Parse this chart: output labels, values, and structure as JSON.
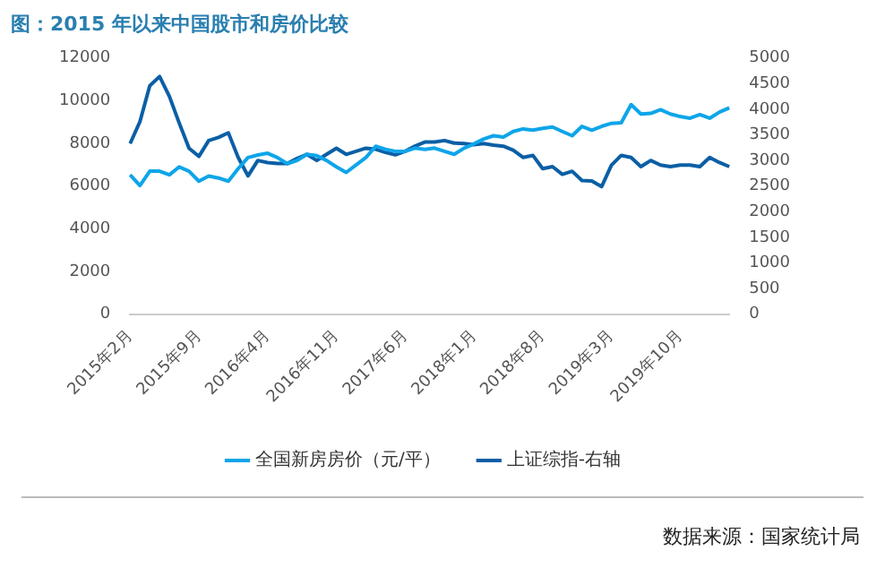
{
  "chart_data": {
    "type": "line",
    "title": "图：2015 年以来中国股市和房价比较",
    "categories": [
      "2015年2月",
      null,
      null,
      null,
      null,
      null,
      null,
      "2015年9月",
      null,
      null,
      null,
      null,
      null,
      null,
      "2016年4月",
      null,
      null,
      null,
      null,
      null,
      null,
      "2016年11月",
      null,
      null,
      null,
      null,
      null,
      null,
      "2017年6月",
      null,
      null,
      null,
      null,
      null,
      null,
      "2018年1月",
      null,
      null,
      null,
      null,
      null,
      null,
      "2018年8月",
      null,
      null,
      null,
      null,
      null,
      null,
      "2019年3月",
      null,
      null,
      null,
      null,
      null,
      null,
      "2019年10月",
      null,
      null,
      null,
      null,
      null
    ],
    "series": [
      {
        "name": "全国新房房价（元/平）",
        "color": "#0ea5e9",
        "values": [
          6530,
          6030,
          6700,
          6700,
          6530,
          6900,
          6700,
          6230,
          6470,
          6380,
          6230,
          6820,
          7340,
          7460,
          7540,
          7340,
          7050,
          7200,
          7490,
          7430,
          7200,
          6900,
          6640,
          6990,
          7340,
          7870,
          7720,
          7630,
          7630,
          7780,
          7720,
          7780,
          7630,
          7490,
          7780,
          7980,
          8210,
          8360,
          8300,
          8560,
          8680,
          8620,
          8710,
          8770,
          8560,
          8360,
          8800,
          8620,
          8800,
          8940,
          8970,
          9820,
          9380,
          9410,
          9580,
          9380,
          9260,
          9180,
          9350,
          9180,
          9470,
          9670
        ]
      },
      {
        "name": "上证综指-右轴",
        "color": "#0b5fa5",
        "axis": "y2",
        "values": [
          3330,
          3760,
          4460,
          4640,
          4250,
          3730,
          3240,
          3080,
          3390,
          3450,
          3540,
          3060,
          2700,
          3000,
          2960,
          2940,
          2940,
          3040,
          3120,
          3000,
          3120,
          3240,
          3120,
          3180,
          3240,
          3220,
          3160,
          3110,
          3180,
          3280,
          3360,
          3360,
          3390,
          3340,
          3330,
          3310,
          3330,
          3300,
          3280,
          3200,
          3060,
          3100,
          2840,
          2880,
          2730,
          2790,
          2610,
          2600,
          2490,
          2910,
          3100,
          3060,
          2880,
          3000,
          2910,
          2880,
          2910,
          2910,
          2880,
          3060,
          2960,
          2880
        ]
      }
    ],
    "ylim": [
      0,
      12000
    ],
    "yticks": [
      0,
      2000,
      4000,
      6000,
      8000,
      10000,
      12000
    ],
    "y2lim": [
      0,
      5000
    ],
    "y2ticks": [
      0,
      500,
      1000,
      1500,
      2000,
      2500,
      3000,
      3500,
      4000,
      4500,
      5000
    ],
    "grid": false,
    "legend": "bottom",
    "marker": "none",
    "annotations": [
      "数据来源：国家统计局"
    ]
  }
}
